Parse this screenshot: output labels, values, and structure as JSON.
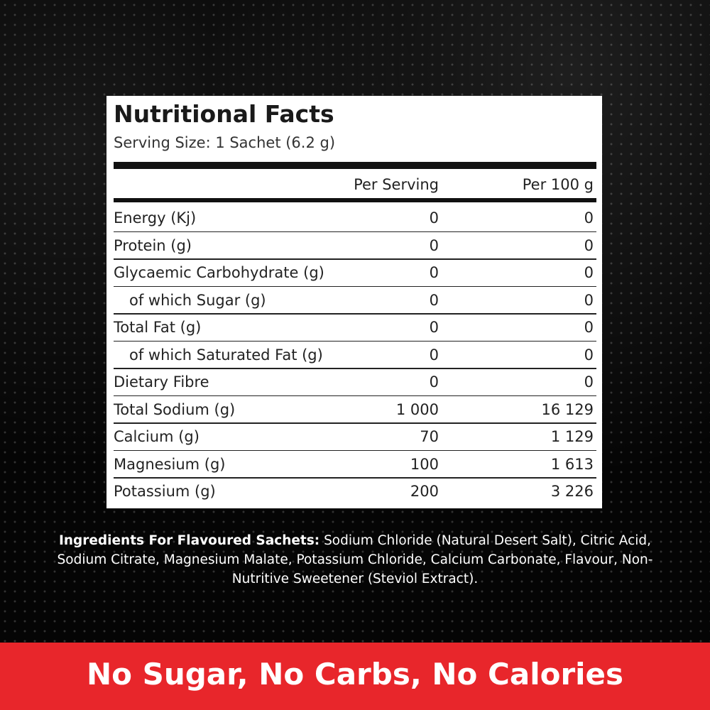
{
  "panel": {
    "title": "Nutritional Facts",
    "serving_size": "Serving Size: 1 Sachet (6.2 g)",
    "table": {
      "header": [
        "Per Serving",
        "Per 100 g"
      ],
      "rows": [
        {
          "label": "Energy (Kj)",
          "indent": false,
          "per_serving": "0",
          "per_100g": "0"
        },
        {
          "label": "Protein (g)",
          "indent": false,
          "per_serving": "0",
          "per_100g": "0"
        },
        {
          "label": "Glycaemic Carbohydrate (g)",
          "indent": false,
          "per_serving": "0",
          "per_100g": "0"
        },
        {
          "label": "of which Sugar (g)",
          "indent": true,
          "per_serving": "0",
          "per_100g": "0"
        },
        {
          "label": "Total Fat (g)",
          "indent": false,
          "per_serving": "0",
          "per_100g": "0"
        },
        {
          "label": "of which Saturated Fat (g)",
          "indent": true,
          "per_serving": "0",
          "per_100g": "0"
        },
        {
          "label": "Dietary Fibre",
          "indent": false,
          "per_serving": "0",
          "per_100g": "0"
        },
        {
          "label": "Total Sodium (g)",
          "indent": false,
          "per_serving": "1 000",
          "per_100g": "16 129"
        },
        {
          "label": "Calcium (g)",
          "indent": false,
          "per_serving": "70",
          "per_100g": "1 129"
        },
        {
          "label": "Magnesium (g)",
          "indent": false,
          "per_serving": "100",
          "per_100g": "1 613"
        },
        {
          "label": "Potassium (g)",
          "indent": false,
          "per_serving": "200",
          "per_100g": "3 226"
        }
      ]
    }
  },
  "ingredients": {
    "heading": "Ingredients For Flavoured Sachets:",
    "text": "Sodium Chloride (Natural Desert Salt), Citric Acid, Sodium Citrate, Magnesium Malate, Potassium Chloride, Calcium Carbonate, Flavour, Non-Nutritive Sweetener (Steviol Extract)."
  },
  "banner": {
    "text": "No Sugar, No Carbs, No Calories"
  }
}
